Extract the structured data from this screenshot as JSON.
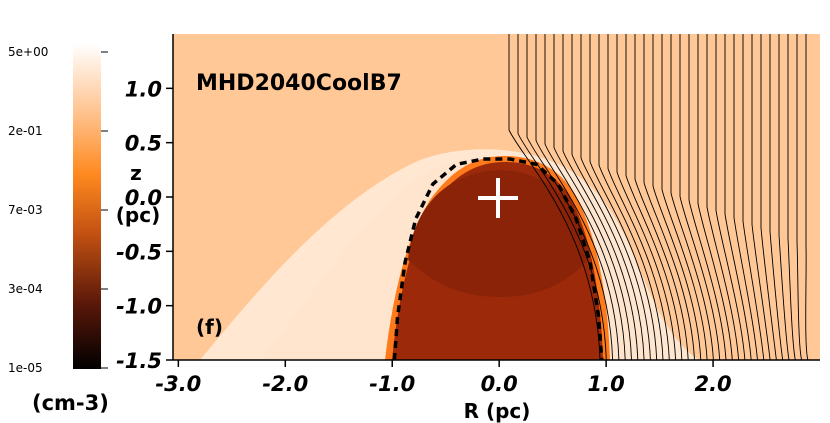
{
  "colorbar": {
    "ticks": [
      "5e+00",
      "2e-01",
      "7e-03",
      "3e-04",
      "1e-05"
    ],
    "unit": "(cm-3)",
    "colors": [
      "#ffffff",
      "#ffb27a",
      "#ff7a10",
      "#c05010",
      "#4a1208",
      "#000000"
    ]
  },
  "plot": {
    "title": "MHD2040CoolB7",
    "panel_label": "(f)",
    "xlabel": "R (pc)",
    "ylabel_top": "z",
    "ylabel_bottom": "(pc)",
    "x_ticks": [
      "-3.0",
      "-2.0",
      "-1.0",
      "0.0",
      "1.0",
      "2.0"
    ],
    "y_ticks": [
      "1.0",
      "0.5",
      "0.0",
      "-0.5",
      "-1.0",
      "-1.5"
    ],
    "background_color": "#ffc896",
    "bubble_color": "#9c2a0a",
    "inner_color": "#8a2308"
  },
  "chart_data": {
    "type": "heatmap",
    "title": "MHD2040CoolB7",
    "xlabel": "R (pc)",
    "ylabel": "z (pc)",
    "x_ticks": [
      -3.0,
      -2.0,
      -1.0,
      0.0,
      1.0,
      2.0
    ],
    "y_ticks": [
      1.0,
      0.5,
      0.0,
      -0.5,
      -1.0,
      -1.5
    ],
    "xlim": [
      -3.05,
      3.0
    ],
    "ylim": [
      -1.5,
      1.5
    ],
    "colorbar": {
      "ticks": [
        "5e+00",
        "2e-01",
        "7e-03",
        "3e-04",
        "1e-05"
      ],
      "unit": "(cm-3)",
      "scale": "log"
    },
    "star_position": [
      0.0,
      0.02
    ],
    "boundary_contour": [
      [
        -0.98,
        -1.5
      ],
      [
        -0.95,
        -1.1
      ],
      [
        -0.88,
        -0.6
      ],
      [
        -0.78,
        -0.2
      ],
      [
        -0.62,
        0.12
      ],
      [
        -0.4,
        0.3
      ],
      [
        -0.15,
        0.35
      ],
      [
        0.1,
        0.35
      ],
      [
        0.35,
        0.3
      ],
      [
        0.55,
        0.12
      ],
      [
        0.72,
        -0.2
      ],
      [
        0.85,
        -0.6
      ],
      [
        0.93,
        -1.1
      ],
      [
        0.96,
        -1.5
      ]
    ]
  }
}
